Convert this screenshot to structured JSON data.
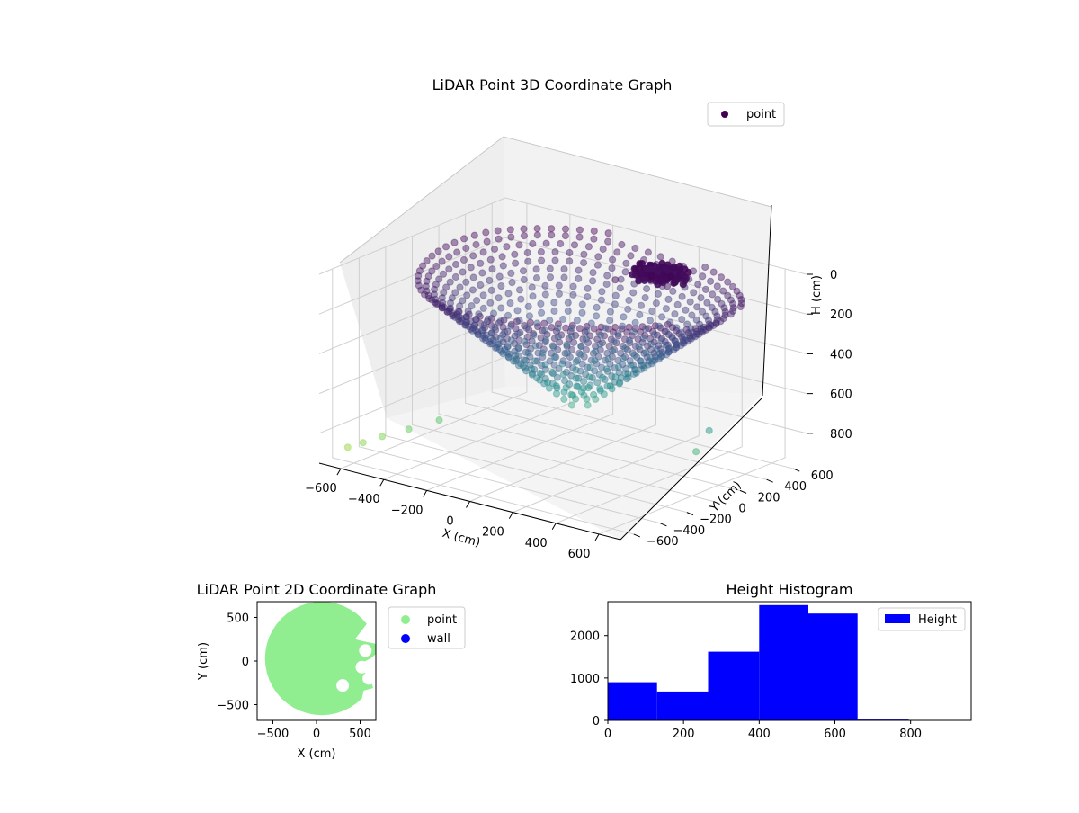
{
  "colors": {
    "viridis_dark": "#440154",
    "viridis_mid": "#31688e",
    "viridis_teal": "#21918c",
    "viridis_green": "#5ec962",
    "point_2d": "#90ee90",
    "wall_2d": "#0000ff",
    "hist_bar": "#0000ff"
  },
  "chart_data": [
    {
      "type": "scatter3d",
      "title": "LiDAR Point 3D Coordinate Graph",
      "xlabel": "X (cm)",
      "ylabel": "Y (cm)",
      "zlabel": "H (cm)",
      "x_ticks": [
        "−600",
        "−400",
        "−200",
        "0",
        "200",
        "400",
        "600"
      ],
      "y_ticks": [
        "−600",
        "−400",
        "−200",
        "0",
        "200",
        "400",
        "600"
      ],
      "z_ticks": [
        "0",
        "200",
        "400",
        "600",
        "800"
      ],
      "xlim": [
        -700,
        700
      ],
      "ylim": [
        -700,
        700
      ],
      "zlim": [
        0,
        950
      ],
      "z_inverted": true,
      "legend": [
        {
          "label": "point",
          "color": "#440154"
        }
      ],
      "legend_position": "top-right",
      "grid": true,
      "colormap": "viridis",
      "points_description_only": false,
      "sample_points": [
        {
          "x": -660,
          "y": -550,
          "h": 900
        },
        {
          "x": -620,
          "y": -500,
          "h": 880
        },
        {
          "x": -580,
          "y": -420,
          "h": 860
        },
        {
          "x": -500,
          "y": -350,
          "h": 820
        },
        {
          "x": -420,
          "y": -250,
          "h": 780
        },
        {
          "x": 120,
          "y": 200,
          "h": 50
        },
        {
          "x": 200,
          "y": 250,
          "h": 40
        },
        {
          "x": 300,
          "y": 300,
          "h": 60
        },
        {
          "x": 650,
          "y": -50,
          "h": 700
        },
        {
          "x": 680,
          "y": 0,
          "h": 600
        }
      ]
    },
    {
      "type": "scatter",
      "title": "LiDAR Point 2D Coordinate Graph",
      "xlabel": "X (cm)",
      "ylabel": "Y (cm)",
      "x_ticks": [
        "−500",
        "0",
        "500"
      ],
      "y_ticks": [
        "−500",
        "0",
        "500"
      ],
      "xlim": [
        -680,
        680
      ],
      "ylim": [
        -680,
        680
      ],
      "legend": [
        {
          "label": "point",
          "color": "#90ee90"
        },
        {
          "label": "wall",
          "color": "#0000ff"
        }
      ],
      "legend_position": "outside-right"
    },
    {
      "type": "bar",
      "title": "Height Histogram",
      "xlabel": "",
      "ylabel": "",
      "x_ticks": [
        "0",
        "200",
        "400",
        "600",
        "800"
      ],
      "y_ticks": [
        "0",
        "1000",
        "2000"
      ],
      "xlim": [
        0,
        960
      ],
      "ylim": [
        0,
        2800
      ],
      "bins": [
        {
          "start": 0,
          "end": 130,
          "count": 900
        },
        {
          "start": 130,
          "end": 265,
          "count": 680
        },
        {
          "start": 265,
          "end": 400,
          "count": 1620
        },
        {
          "start": 400,
          "end": 530,
          "count": 2720
        },
        {
          "start": 530,
          "end": 660,
          "count": 2520
        },
        {
          "start": 660,
          "end": 795,
          "count": 20
        },
        {
          "start": 795,
          "end": 930,
          "count": 0
        }
      ],
      "legend": [
        {
          "label": "Height",
          "color": "#0000ff"
        }
      ],
      "legend_position": "top-right"
    }
  ]
}
